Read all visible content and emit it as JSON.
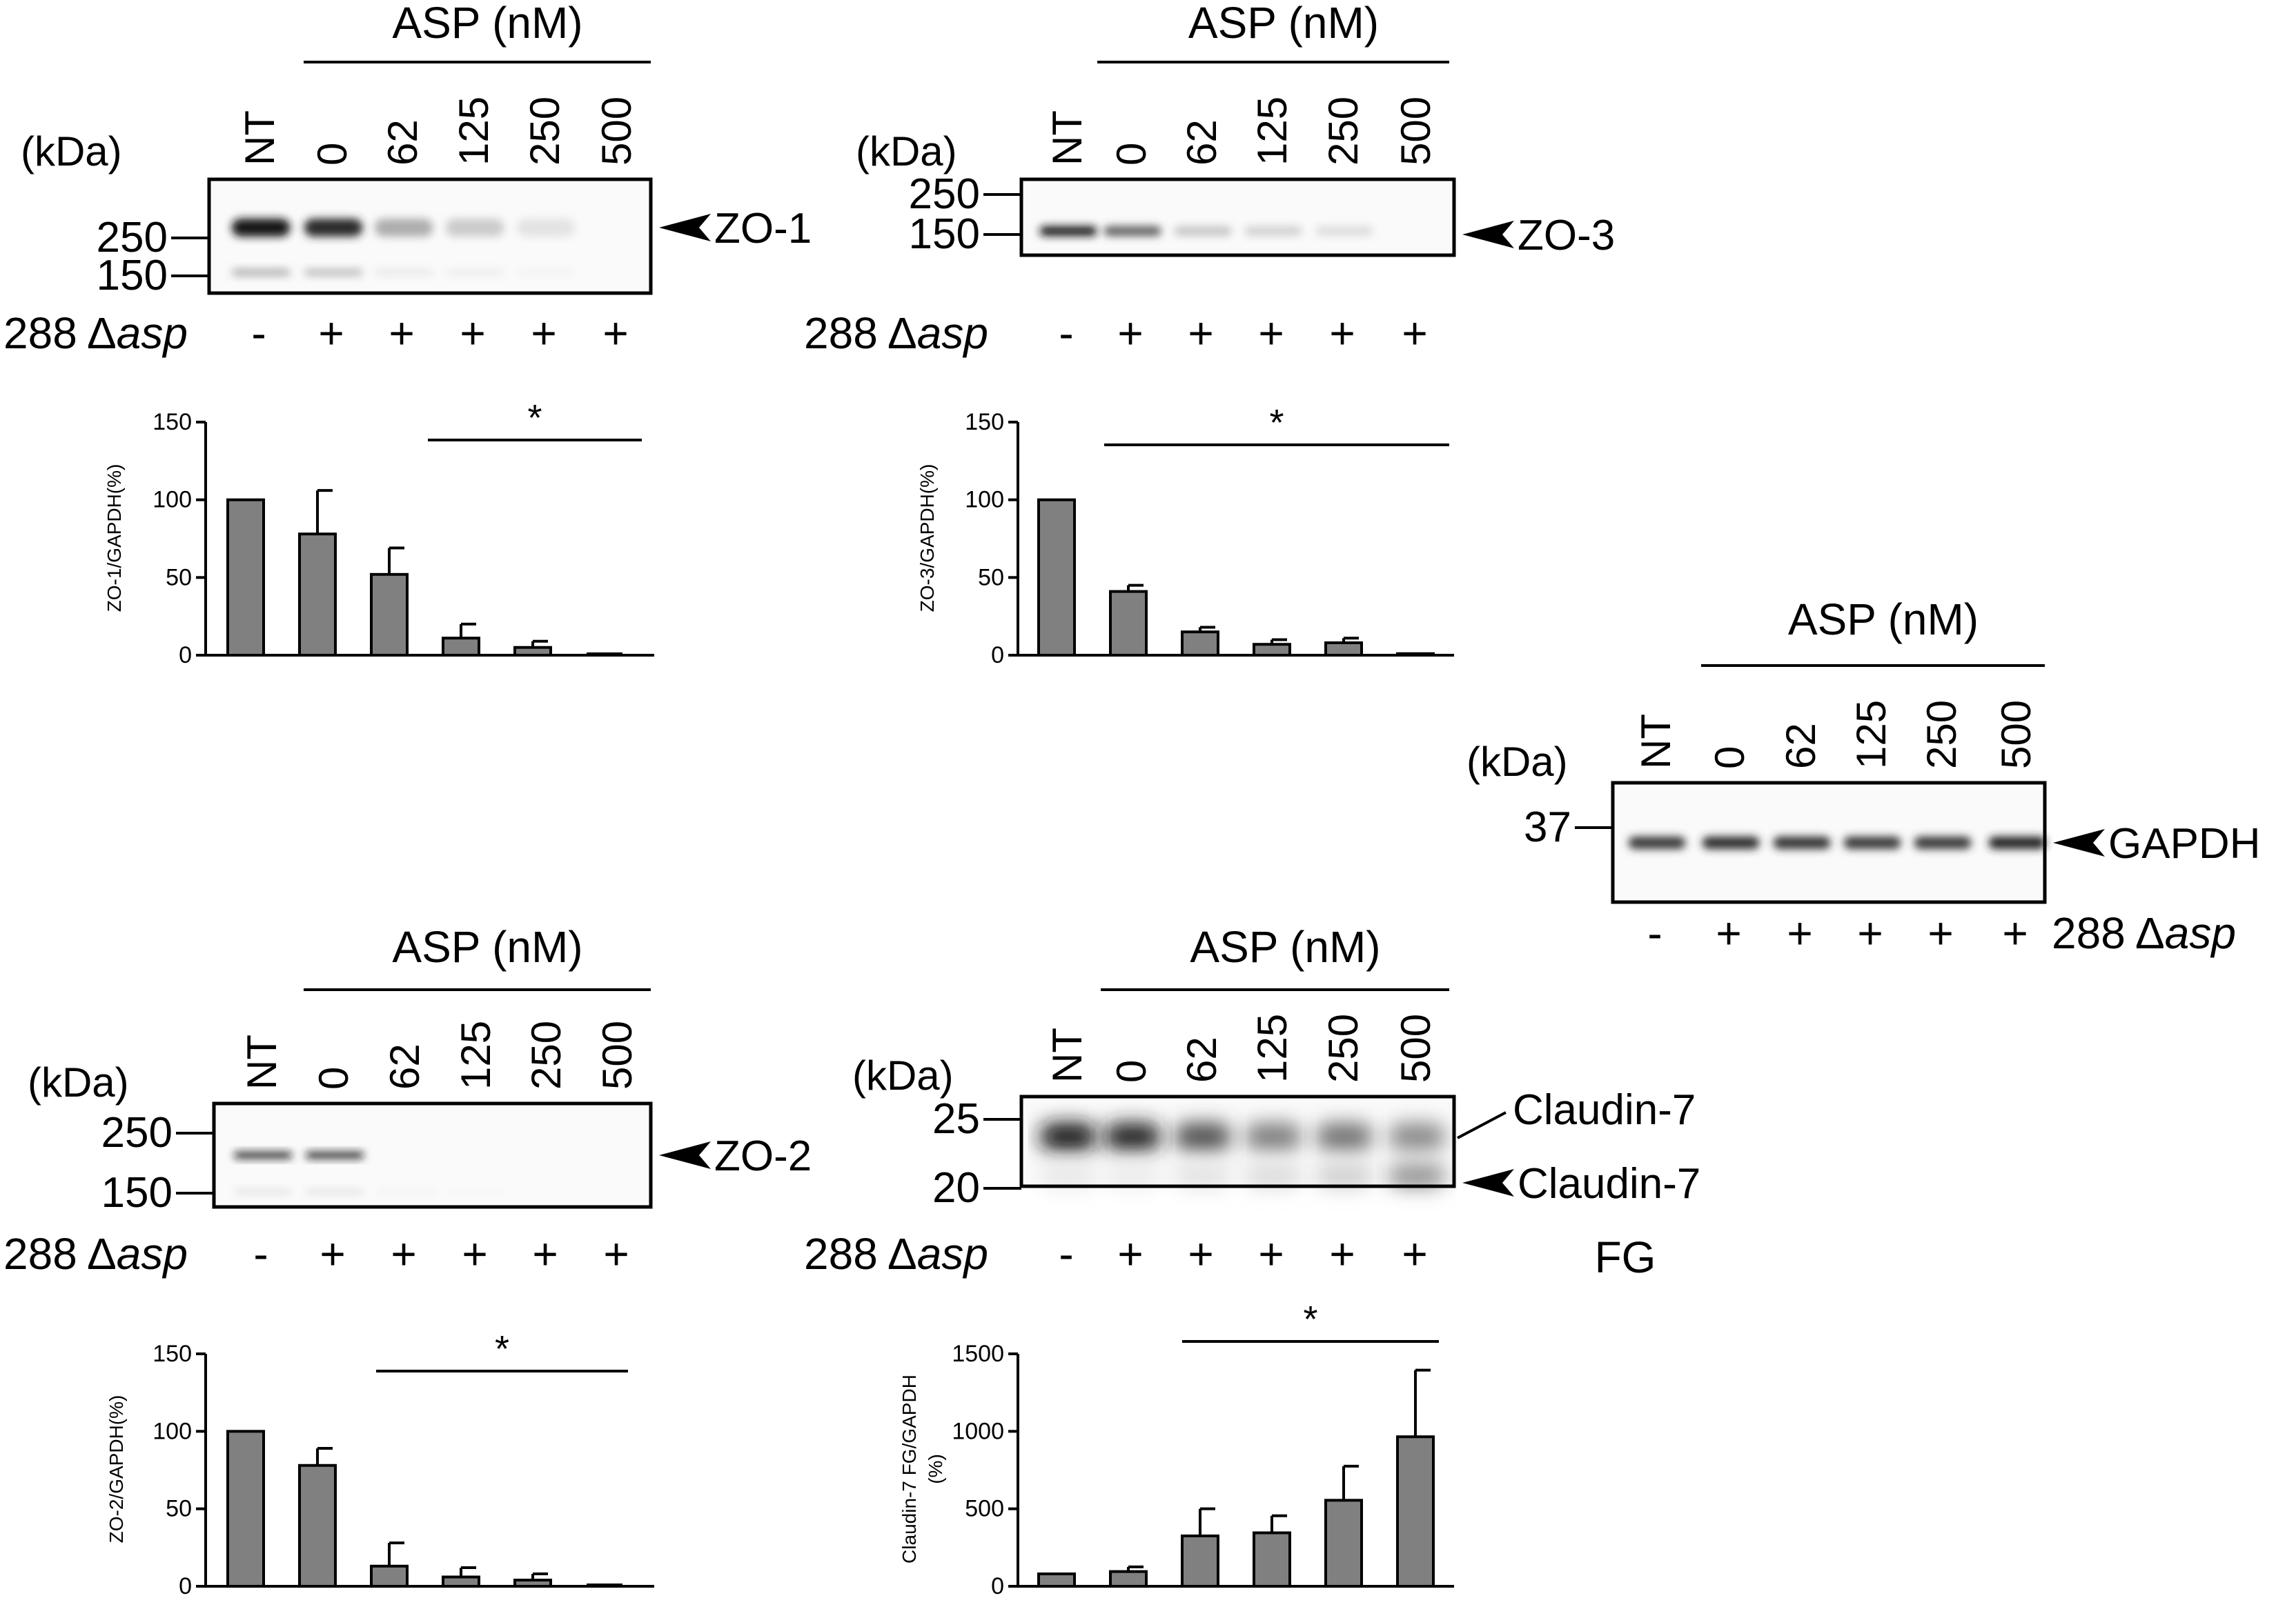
{
  "blots": [
    {
      "id": "zo1",
      "header": "ASP (nM)",
      "kda_label": "(kDa)",
      "lanes": [
        "NT",
        "0",
        "62",
        "125",
        "250",
        "500"
      ],
      "markers": [
        {
          "label": "250"
        },
        {
          "label": "150"
        }
      ],
      "targets": [
        "ZO-1"
      ],
      "treatment": {
        "prefix": "288 Δ",
        "italic": "asp",
        "signs": [
          "-",
          "+",
          "+",
          "+",
          "+",
          "+"
        ]
      }
    },
    {
      "id": "zo3",
      "header": "ASP (nM)",
      "kda_label": "(kDa)",
      "lanes": [
        "NT",
        "0",
        "62",
        "125",
        "250",
        "500"
      ],
      "markers": [
        {
          "label": "250"
        },
        {
          "label": "150"
        }
      ],
      "targets": [
        "ZO-3"
      ],
      "treatment": {
        "prefix": "288 Δ",
        "italic": "asp",
        "signs": [
          "-",
          "+",
          "+",
          "+",
          "+",
          "+"
        ]
      }
    },
    {
      "id": "gapdh",
      "header": "ASP (nM)",
      "kda_label": "(kDa)",
      "lanes": [
        "NT",
        "0",
        "62",
        "125",
        "250",
        "500"
      ],
      "markers": [
        {
          "label": "37"
        }
      ],
      "targets": [
        "GAPDH"
      ],
      "treatment": {
        "prefix": "288 Δ",
        "italic": "asp",
        "signs": [
          "-",
          "+",
          "+",
          "+",
          "+",
          "+"
        ]
      }
    },
    {
      "id": "zo2",
      "header": "ASP (nM)",
      "kda_label": "(kDa)",
      "lanes": [
        "NT",
        "0",
        "62",
        "125",
        "250",
        "500"
      ],
      "markers": [
        {
          "label": "250"
        },
        {
          "label": "150"
        }
      ],
      "targets": [
        "ZO-2"
      ],
      "treatment": {
        "prefix": "288 Δ",
        "italic": "asp",
        "signs": [
          "-",
          "+",
          "+",
          "+",
          "+",
          "+"
        ]
      }
    },
    {
      "id": "cld7",
      "header": "ASP (nM)",
      "kda_label": "(kDa)",
      "lanes": [
        "NT",
        "0",
        "62",
        "125",
        "250",
        "500"
      ],
      "markers": [
        {
          "label": "25"
        },
        {
          "label": "20"
        }
      ],
      "targets": [
        "Claudin-7",
        "Claudin-7"
      ],
      "extra_label": "FG",
      "treatment": {
        "prefix": "288 Δ",
        "italic": "asp",
        "signs": [
          "-",
          "+",
          "+",
          "+",
          "+",
          "+"
        ]
      }
    }
  ],
  "chart_data": [
    {
      "type": "bar",
      "categories": [
        "NT",
        "0",
        "62",
        "125",
        "250",
        "500"
      ],
      "values": [
        100,
        78,
        52,
        11,
        5,
        0
      ],
      "errors": [
        0,
        28,
        17,
        9,
        4,
        0
      ],
      "ylabel": "ZO-1/GAPDH(%)",
      "ylim": [
        0,
        150
      ],
      "yticks": [
        0,
        50,
        100,
        150
      ],
      "significance": "*"
    },
    {
      "type": "bar",
      "categories": [
        "NT",
        "0",
        "62",
        "125",
        "250",
        "500"
      ],
      "values": [
        100,
        41,
        15,
        7,
        8,
        1
      ],
      "errors": [
        0,
        4,
        3,
        3,
        3,
        0
      ],
      "ylabel": "ZO-3/GAPDH(%)",
      "ylim": [
        0,
        150
      ],
      "yticks": [
        0,
        50,
        100,
        150
      ],
      "significance": "*"
    },
    {
      "type": "bar",
      "categories": [
        "NT",
        "0",
        "62",
        "125",
        "250",
        "500"
      ],
      "values": [
        100,
        78,
        13,
        6,
        4,
        0
      ],
      "errors": [
        0,
        11,
        15,
        6,
        4,
        0
      ],
      "ylabel": "ZO-2/GAPDH(%)",
      "ylim": [
        0,
        150
      ],
      "yticks": [
        0,
        50,
        100,
        150
      ],
      "significance": "*"
    },
    {
      "type": "bar",
      "categories": [
        "NT",
        "0",
        "62",
        "125",
        "250",
        "500"
      ],
      "values": [
        80,
        95,
        325,
        345,
        555,
        965
      ],
      "errors": [
        0,
        30,
        175,
        110,
        220,
        430
      ],
      "ylabel": [
        "Claudin-7 FG/GAPDH",
        "(%)"
      ],
      "ylim": [
        0,
        1500
      ],
      "yticks": [
        0,
        500,
        1000,
        1500
      ],
      "significance": "*"
    }
  ]
}
